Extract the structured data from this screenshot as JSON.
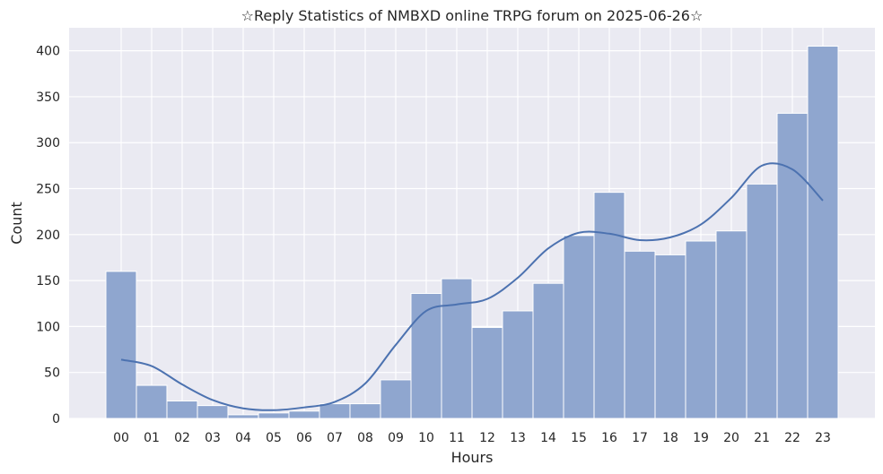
{
  "chart_data": {
    "type": "bar",
    "title": "☆Reply Statistics of NMBXD online TRPG forum on 2025-06-26☆",
    "xlabel": "Hours",
    "ylabel": "Count",
    "categories": [
      "00",
      "01",
      "02",
      "03",
      "04",
      "05",
      "06",
      "07",
      "08",
      "09",
      "10",
      "11",
      "12",
      "13",
      "14",
      "15",
      "16",
      "17",
      "18",
      "19",
      "20",
      "21",
      "22",
      "23"
    ],
    "values": [
      160,
      36,
      19,
      14,
      4,
      6,
      8,
      16,
      16,
      42,
      136,
      152,
      99,
      117,
      147,
      199,
      246,
      182,
      178,
      193,
      204,
      255,
      332,
      405
    ],
    "kde": [
      64,
      57,
      37,
      20,
      11,
      9,
      12,
      18,
      38,
      80,
      117,
      124,
      130,
      153,
      185,
      202,
      201,
      194,
      197,
      211,
      240,
      275,
      271,
      237
    ],
    "yticks": [
      0,
      50,
      100,
      150,
      200,
      250,
      300,
      350,
      400
    ],
    "ylim": [
      0,
      425
    ],
    "grid": true,
    "colors": {
      "background": "#eaeaf2",
      "grid": "#ffffff",
      "bar_fill": "#8fa6cf",
      "bar_edge": "#ffffff",
      "kde_line": "#4c72b0"
    }
  }
}
